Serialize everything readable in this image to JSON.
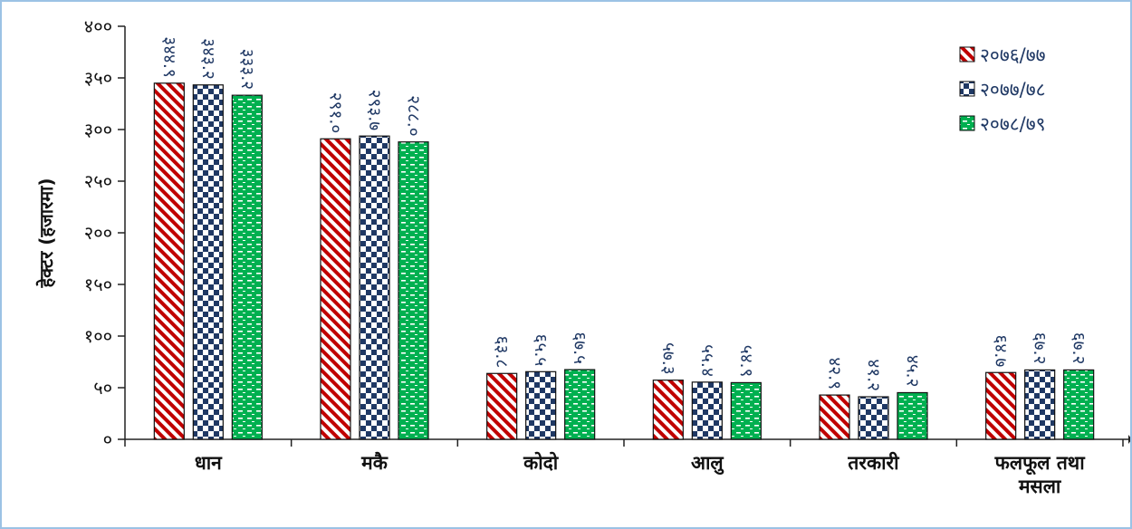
{
  "chart_data": {
    "type": "bar",
    "title": "",
    "xlabel": "",
    "ylabel": "हेक्टर (हजारमा)",
    "ylim": [
      0,
      400
    ],
    "y_ticks": [
      {
        "value": 0,
        "label": "०"
      },
      {
        "value": 50,
        "label": "५०"
      },
      {
        "value": 100,
        "label": "१००"
      },
      {
        "value": 150,
        "label": "१५०"
      },
      {
        "value": 200,
        "label": "२००"
      },
      {
        "value": 250,
        "label": "२५०"
      },
      {
        "value": 300,
        "label": "३००"
      },
      {
        "value": 350,
        "label": "३५०"
      },
      {
        "value": 400,
        "label": "४००"
      }
    ],
    "categories": [
      [
        "धान"
      ],
      [
        "मकै"
      ],
      [
        "कोदो"
      ],
      [
        "आलु"
      ],
      [
        "तरकारी"
      ],
      [
        "फलफूल तथा",
        "मसला"
      ]
    ],
    "legend_position": "top-right",
    "series": [
      {
        "name": "२०७६/७७",
        "color": "#c00000",
        "pattern": "diagonal-stripe",
        "values": [
          344.9,
          291.0,
          63.8,
          57.3,
          42.9,
          64.7
        ],
        "labels": [
          "३४४.९",
          "२९१.०",
          "६३.८",
          "५७.३",
          "४२.९",
          "६४.७"
        ]
      },
      {
        "name": "२०७७/७८",
        "color": "#1f3864",
        "pattern": "checker",
        "values": [
          343.2,
          293.7,
          65.5,
          55.4,
          41.2,
          67.2
        ],
        "labels": [
          "३४३.२",
          "२९३.७",
          "६५.५",
          "५५.४",
          "४१.२",
          "६७.२"
        ]
      },
      {
        "name": "२०७८/७९",
        "color": "#00b050",
        "pattern": "dashed-grid",
        "values": [
          333.2,
          288.0,
          67.5,
          54.9,
          45.2,
          67.2
        ],
        "labels": [
          "३३३.२",
          "२८८.०",
          "६७.५",
          "५४.९",
          "४५.२",
          "६७.२"
        ]
      }
    ]
  }
}
